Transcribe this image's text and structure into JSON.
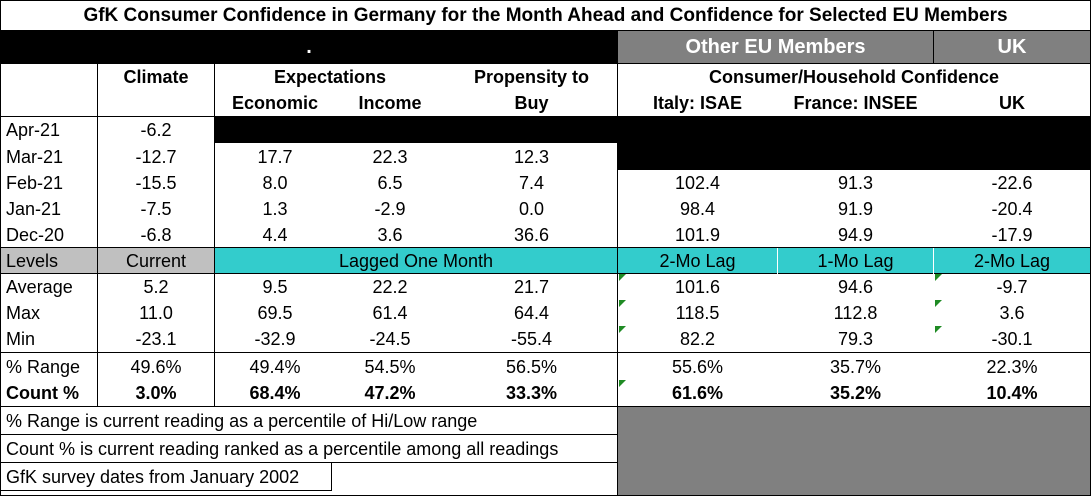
{
  "title": "GfK Consumer Confidence in Germany for the Month Ahead and Confidence for Selected EU Members",
  "header": {
    "dot": ".",
    "other_eu": "Other EU Members",
    "uk_group": "UK",
    "climate": "Climate",
    "expectations": "Expectations",
    "economic": "Economic",
    "income": "Income",
    "propensity": "Propensity to",
    "buy": "Buy",
    "consumer_household": "Consumer/Household Confidence",
    "italy": "Italy: ISAE",
    "france": "France: INSEE",
    "uk": "UK"
  },
  "rows": [
    {
      "month": "Apr-21",
      "climate": "-6.2",
      "economic": "",
      "income": "",
      "buy": "",
      "italy": "",
      "france": "",
      "uk": ""
    },
    {
      "month": "Mar-21",
      "climate": "-12.7",
      "economic": "17.7",
      "income": "22.3",
      "buy": "12.3",
      "italy": "",
      "france": "",
      "uk": ""
    },
    {
      "month": "Feb-21",
      "climate": "-15.5",
      "economic": "8.0",
      "income": "6.5",
      "buy": "7.4",
      "italy": "102.4",
      "france": "91.3",
      "uk": "-22.6"
    },
    {
      "month": "Jan-21",
      "climate": "-7.5",
      "economic": "1.3",
      "income": "-2.9",
      "buy": "0.0",
      "italy": "98.4",
      "france": "91.9",
      "uk": "-20.4"
    },
    {
      "month": "Dec-20",
      "climate": "-6.8",
      "economic": "4.4",
      "income": "3.6",
      "buy": "36.6",
      "italy": "101.9",
      "france": "94.9",
      "uk": "-17.9"
    }
  ],
  "levels": {
    "label": "Levels",
    "current": "Current",
    "lagged": "Lagged One Month",
    "italy_lag": "2-Mo Lag",
    "france_lag": "1-Mo Lag",
    "uk_lag": "2-Mo Lag"
  },
  "stats": [
    {
      "label": "Average",
      "climate": "5.2",
      "economic": "9.5",
      "income": "22.2",
      "buy": "21.7",
      "italy": "101.6",
      "france": "94.6",
      "uk": "-9.7"
    },
    {
      "label": "Max",
      "climate": "11.0",
      "economic": "69.5",
      "income": "61.4",
      "buy": "64.4",
      "italy": "118.5",
      "france": "112.8",
      "uk": "3.6"
    },
    {
      "label": "Min",
      "climate": "-23.1",
      "economic": "-32.9",
      "income": "-24.5",
      "buy": "-55.4",
      "italy": "82.2",
      "france": "79.3",
      "uk": "-30.1"
    }
  ],
  "range_row": {
    "label": "% Range",
    "climate": "49.6%",
    "economic": "49.4%",
    "income": "54.5%",
    "buy": "56.5%",
    "italy": "55.6%",
    "france": "35.7%",
    "uk": "22.3%"
  },
  "count_row": {
    "label": "Count %",
    "climate": "3.0%",
    "economic": "68.4%",
    "income": "47.2%",
    "buy": "33.3%",
    "italy": "61.6%",
    "france": "35.2%",
    "uk": "10.4%"
  },
  "notes": [
    "% Range is current reading as a percentile of Hi/Low range",
    "Count % is current reading ranked as a percentile among all readings",
    "GfK survey dates from January 2002"
  ],
  "colors": {
    "cyan": "#33cccc",
    "gray": "#808080",
    "light_gray": "#c0c0c0",
    "black": "#000000",
    "triangle": "#1f8b24"
  }
}
